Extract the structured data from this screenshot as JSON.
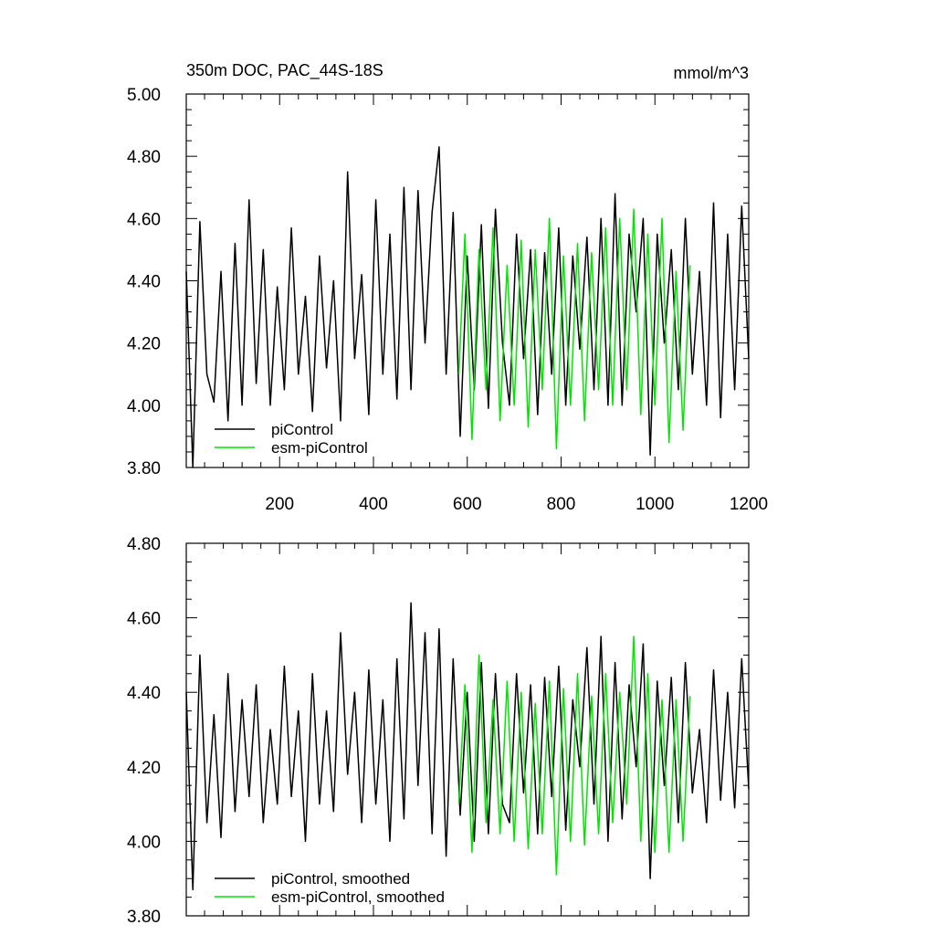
{
  "colors": {
    "series1": "#000000",
    "series2": "#00e600"
  },
  "chart_data": [
    {
      "type": "line",
      "title": "350m DOC, PAC_44S-18S",
      "units": "mmol/m^3",
      "xlim": [
        1,
        1200
      ],
      "ylim": [
        3.8,
        5.0
      ],
      "xticks": [
        200,
        400,
        600,
        800,
        1000,
        1200
      ],
      "xtick_labels": [
        "200",
        "400",
        "600",
        "800",
        "1000",
        "1200"
      ],
      "yticks": [
        3.8,
        4.0,
        4.2,
        4.4,
        4.6,
        4.8,
        5.0
      ],
      "ytick_labels": [
        "3.80",
        "4.00",
        "4.20",
        "4.40",
        "4.60",
        "4.80",
        "5.00"
      ],
      "legend_position": "bottom-left",
      "series": [
        {
          "name": "piControl",
          "color": "#000000",
          "x": [
            1,
            15,
            30,
            45,
            60,
            75,
            90,
            105,
            120,
            135,
            150,
            165,
            180,
            195,
            210,
            225,
            240,
            255,
            270,
            285,
            300,
            315,
            330,
            345,
            360,
            375,
            390,
            405,
            420,
            435,
            450,
            465,
            480,
            495,
            510,
            525,
            540,
            555,
            570,
            585,
            600,
            615,
            630,
            645,
            660,
            675,
            690,
            705,
            720,
            735,
            750,
            765,
            780,
            795,
            810,
            825,
            840,
            855,
            870,
            885,
            900,
            915,
            930,
            945,
            960,
            975,
            990,
            1005,
            1020,
            1035,
            1050,
            1065,
            1080,
            1095,
            1110,
            1125,
            1140,
            1155,
            1170,
            1185,
            1200
          ],
          "y": [
            4.43,
            3.8,
            4.59,
            4.1,
            4.01,
            4.43,
            3.95,
            4.52,
            4.0,
            4.66,
            4.07,
            4.5,
            4.0,
            4.38,
            4.05,
            4.57,
            4.1,
            4.35,
            3.98,
            4.48,
            4.12,
            4.4,
            3.95,
            4.75,
            4.15,
            4.42,
            3.97,
            4.66,
            4.1,
            4.55,
            4.02,
            4.7,
            4.05,
            4.69,
            4.2,
            4.62,
            4.83,
            4.1,
            4.62,
            3.9,
            4.48,
            4.05,
            4.58,
            3.99,
            4.63,
            4.2,
            4.0,
            4.55,
            4.15,
            4.5,
            3.97,
            4.49,
            4.1,
            4.57,
            4.0,
            4.48,
            4.18,
            4.54,
            4.05,
            4.6,
            4.0,
            4.68,
            4.0,
            4.55,
            4.3,
            4.6,
            3.84,
            4.55,
            4.2,
            4.5,
            4.05,
            4.6,
            4.1,
            4.43,
            4.0,
            4.65,
            3.96,
            4.55,
            4.05,
            4.64,
            4.15
          ]
        },
        {
          "name": "esm-piControl",
          "color": "#00e600",
          "x": [
            582,
            595,
            610,
            625,
            640,
            655,
            670,
            685,
            700,
            715,
            730,
            745,
            760,
            775,
            790,
            805,
            820,
            835,
            850,
            865,
            880,
            895,
            910,
            925,
            940,
            955,
            970,
            985,
            1000,
            1015,
            1030,
            1045,
            1060,
            1075
          ],
          "y": [
            4.1,
            4.55,
            3.89,
            4.5,
            4.05,
            4.57,
            3.95,
            4.45,
            4.0,
            4.53,
            3.93,
            4.5,
            4.05,
            4.6,
            3.86,
            4.48,
            4.0,
            4.52,
            3.95,
            4.49,
            4.05,
            4.57,
            4.0,
            4.6,
            4.05,
            4.63,
            3.97,
            4.55,
            4.0,
            4.6,
            3.88,
            4.43,
            3.92,
            4.45
          ]
        }
      ]
    },
    {
      "type": "line",
      "xlim": [
        1,
        1200
      ],
      "ylim": [
        3.8,
        4.8
      ],
      "xticks": [
        200,
        400,
        600,
        800,
        1000,
        1200
      ],
      "yticks": [
        3.8,
        4.0,
        4.2,
        4.4,
        4.6,
        4.8
      ],
      "ytick_labels": [
        "3.80",
        "4.00",
        "4.20",
        "4.40",
        "4.60",
        "4.80"
      ],
      "legend_position": "bottom-left",
      "series": [
        {
          "name": "piControl, smoothed",
          "color": "#000000",
          "x": [
            1,
            15,
            30,
            45,
            60,
            75,
            90,
            105,
            120,
            135,
            150,
            165,
            180,
            195,
            210,
            225,
            240,
            255,
            270,
            285,
            300,
            315,
            330,
            345,
            360,
            375,
            390,
            405,
            420,
            435,
            450,
            465,
            480,
            495,
            510,
            525,
            540,
            555,
            570,
            585,
            600,
            615,
            630,
            645,
            660,
            675,
            690,
            705,
            720,
            735,
            750,
            765,
            780,
            795,
            810,
            825,
            840,
            855,
            870,
            885,
            900,
            915,
            930,
            945,
            960,
            975,
            990,
            1005,
            1020,
            1035,
            1050,
            1065,
            1080,
            1095,
            1110,
            1125,
            1140,
            1155,
            1170,
            1185,
            1200
          ],
          "y": [
            4.4,
            3.87,
            4.5,
            4.05,
            4.34,
            4.01,
            4.45,
            4.08,
            4.38,
            4.12,
            4.42,
            4.05,
            4.3,
            4.1,
            4.47,
            4.12,
            4.35,
            4.0,
            4.45,
            4.1,
            4.35,
            4.08,
            4.56,
            4.18,
            4.4,
            4.05,
            4.46,
            4.1,
            4.38,
            4.0,
            4.49,
            4.06,
            4.64,
            4.15,
            4.56,
            4.02,
            4.57,
            3.96,
            4.49,
            4.07,
            4.4,
            4.0,
            4.48,
            4.02,
            4.45,
            4.1,
            4.05,
            4.45,
            4.13,
            4.42,
            4.02,
            4.44,
            4.12,
            4.47,
            4.03,
            4.38,
            4.2,
            4.52,
            4.1,
            4.55,
            4.0,
            4.48,
            4.06,
            4.42,
            4.2,
            4.53,
            3.9,
            4.43,
            4.15,
            4.44,
            4.05,
            4.48,
            4.13,
            4.3,
            4.05,
            4.46,
            4.11,
            4.4,
            4.09,
            4.49,
            4.14
          ]
        },
        {
          "name": "esm-piControl, smoothed",
          "color": "#00e600",
          "x": [
            582,
            595,
            610,
            625,
            640,
            655,
            670,
            685,
            700,
            715,
            730,
            745,
            760,
            775,
            790,
            805,
            820,
            835,
            850,
            865,
            880,
            895,
            910,
            925,
            940,
            955,
            970,
            985,
            1000,
            1015,
            1030,
            1045,
            1060,
            1075
          ],
          "y": [
            4.1,
            4.42,
            3.97,
            4.5,
            4.05,
            4.38,
            4.02,
            4.43,
            4.0,
            4.4,
            3.98,
            4.37,
            4.02,
            4.43,
            3.91,
            4.41,
            4.0,
            4.45,
            3.99,
            4.39,
            4.02,
            4.45,
            4.05,
            4.4,
            4.1,
            4.55,
            4.0,
            4.45,
            3.97,
            4.38,
            3.97,
            4.38,
            4.0,
            4.39
          ]
        }
      ]
    }
  ]
}
